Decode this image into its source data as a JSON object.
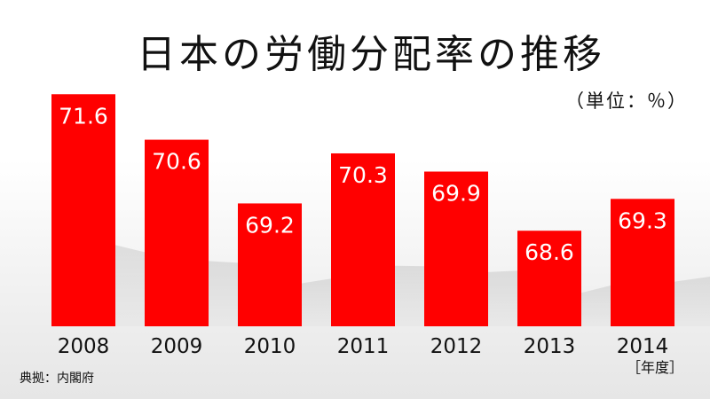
{
  "chart_data": {
    "type": "bar",
    "title": "日本の労働分配率の推移",
    "unit_label": "（単位：％）",
    "x_unit_label": "［年度］",
    "source": "典拠：内閣府",
    "categories": [
      "2008",
      "2009",
      "2010",
      "2011",
      "2012",
      "2013",
      "2014"
    ],
    "values": [
      71.6,
      70.6,
      69.2,
      70.3,
      69.9,
      68.6,
      69.3
    ],
    "value_labels": [
      "71.6",
      "70.6",
      "69.2",
      "70.3",
      "69.9",
      "68.6",
      "69.3"
    ],
    "bar_color": "#ff0000",
    "ylim": [
      66.5,
      71.8
    ],
    "grid": false,
    "legend": "none"
  }
}
